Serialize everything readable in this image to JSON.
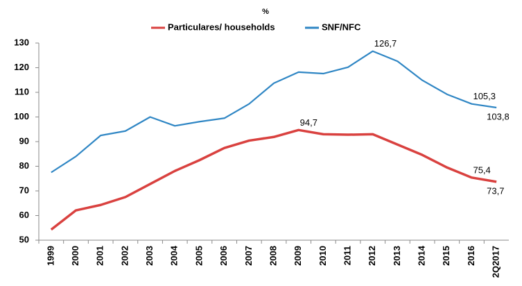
{
  "chart_data": {
    "type": "line",
    "title": "%",
    "categories": [
      "1999",
      "2000",
      "2001",
      "2002",
      "2003",
      "2004",
      "2005",
      "2006",
      "2007",
      "2008",
      "2009",
      "2010",
      "2011",
      "2012",
      "2013",
      "2014",
      "2015",
      "2016",
      "2Q2017"
    ],
    "series": [
      {
        "name": "Particulares/ households",
        "color": "#d9413f",
        "values": [
          54.3,
          62.1,
          64.3,
          67.5,
          72.8,
          78.1,
          82.5,
          87.4,
          90.4,
          91.9,
          94.7,
          93.0,
          92.8,
          93.0,
          88.8,
          84.6,
          79.5,
          75.4,
          73.7
        ],
        "value_labels": [
          null,
          null,
          null,
          null,
          null,
          null,
          null,
          null,
          null,
          null,
          "94,7",
          null,
          null,
          null,
          null,
          null,
          null,
          "75,4",
          "73,7"
        ]
      },
      {
        "name": "SNF/NFC",
        "color": "#2f86c4",
        "values": [
          77.5,
          84.0,
          92.5,
          94.3,
          100.0,
          96.4,
          98.1,
          99.5,
          105.3,
          113.7,
          118.2,
          117.6,
          120.2,
          126.7,
          122.6,
          114.9,
          109.2,
          105.3,
          103.8
        ],
        "value_labels": [
          null,
          null,
          null,
          null,
          null,
          null,
          null,
          null,
          null,
          null,
          null,
          null,
          null,
          "126,7",
          null,
          null,
          null,
          "105,3",
          "103,8"
        ]
      }
    ],
    "ylim": [
      50,
      130
    ],
    "yticks": [
      50,
      60,
      70,
      80,
      90,
      100,
      110,
      120,
      130
    ],
    "legend": "top"
  }
}
